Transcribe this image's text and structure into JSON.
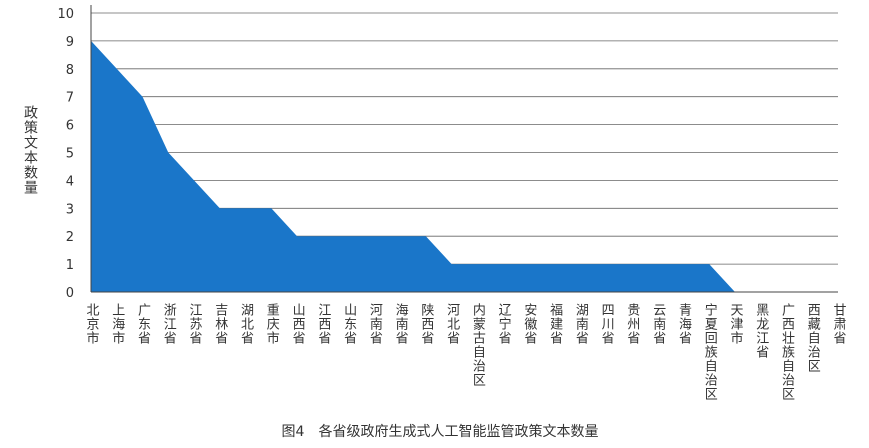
{
  "chart_data": {
    "type": "area",
    "title": "图4　各省级政府生成式人工智能监管政策文本数量",
    "y_label": "政策文本数量",
    "categories": [
      "北京市",
      "上海市",
      "广东省",
      "浙江省",
      "江苏省",
      "吉林省",
      "湖北省",
      "重庆市",
      "山西省",
      "江西省",
      "山东省",
      "河南省",
      "海南省",
      "陕西省",
      "河北省",
      "内蒙古自治区",
      "辽宁省",
      "安徽省",
      "福建省",
      "湖南省",
      "四川省",
      "贵州省",
      "云南省",
      "青海省",
      "宁夏回族自治区",
      "天津市",
      "黑龙江省",
      "广西壮族自治区",
      "西藏自治区",
      "甘肃省"
    ],
    "values": [
      9,
      8,
      7,
      5,
      4,
      3,
      3,
      3,
      2,
      2,
      2,
      2,
      2,
      2,
      1,
      1,
      1,
      1,
      1,
      1,
      1,
      1,
      1,
      1,
      1,
      0,
      0,
      0,
      0,
      0
    ],
    "color": "#1a76c9",
    "ylim": [
      0,
      10
    ],
    "yticks": [
      0,
      1,
      2,
      3,
      4,
      5,
      6,
      7,
      8,
      9,
      10
    ],
    "grid": true
  }
}
